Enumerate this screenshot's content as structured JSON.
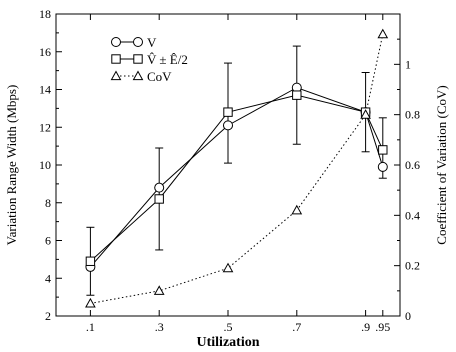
{
  "chart_data": {
    "type": "line",
    "title": "",
    "xlabel": "Utilization",
    "ylabel": "Variation Range Width (Mbps)",
    "y2label": "Coefficient of Variation (CoV)",
    "x_ticks": [
      0.1,
      0.3,
      0.5,
      0.7,
      0.9,
      0.95
    ],
    "x_tick_labels": [
      ".1",
      ".3",
      ".5",
      ".7",
      ".9",
      ".95"
    ],
    "xlim": [
      0.0,
      1.0
    ],
    "ylim": [
      2,
      18
    ],
    "y_ticks": [
      2,
      4,
      6,
      8,
      10,
      12,
      14,
      16,
      18
    ],
    "y2lim": [
      0,
      1.2
    ],
    "y2_ticks": [
      0,
      0.2,
      0.4,
      0.6,
      0.8,
      1
    ],
    "y2_tick_labels": [
      "0",
      "0.2",
      "0.4",
      "0.6",
      "0.8",
      "1"
    ],
    "legend_position": "top-left",
    "grid": false,
    "series": [
      {
        "name": "V",
        "marker": "circle",
        "line": "solid",
        "axis": "left",
        "x": [
          0.1,
          0.3,
          0.5,
          0.7,
          0.9,
          0.95
        ],
        "values": [
          4.6,
          8.8,
          12.1,
          14.1,
          12.8,
          9.9
        ]
      },
      {
        "name": "V̂ ± Ê/2",
        "marker": "square",
        "line": "solid",
        "axis": "left",
        "x": [
          0.1,
          0.3,
          0.5,
          0.7,
          0.9,
          0.95
        ],
        "values": [
          4.9,
          8.2,
          12.8,
          13.7,
          12.8,
          10.8
        ],
        "error_low": [
          3.1,
          5.5,
          10.1,
          11.1,
          10.7,
          9.3
        ],
        "error_high": [
          6.7,
          10.9,
          15.4,
          16.3,
          14.9,
          12.5
        ]
      },
      {
        "name": "CoV",
        "marker": "triangle",
        "line": "dotted",
        "axis": "right",
        "x": [
          0.1,
          0.3,
          0.5,
          0.7,
          0.9,
          0.95
        ],
        "values": [
          0.05,
          0.1,
          0.19,
          0.42,
          0.8,
          1.12
        ]
      }
    ]
  }
}
